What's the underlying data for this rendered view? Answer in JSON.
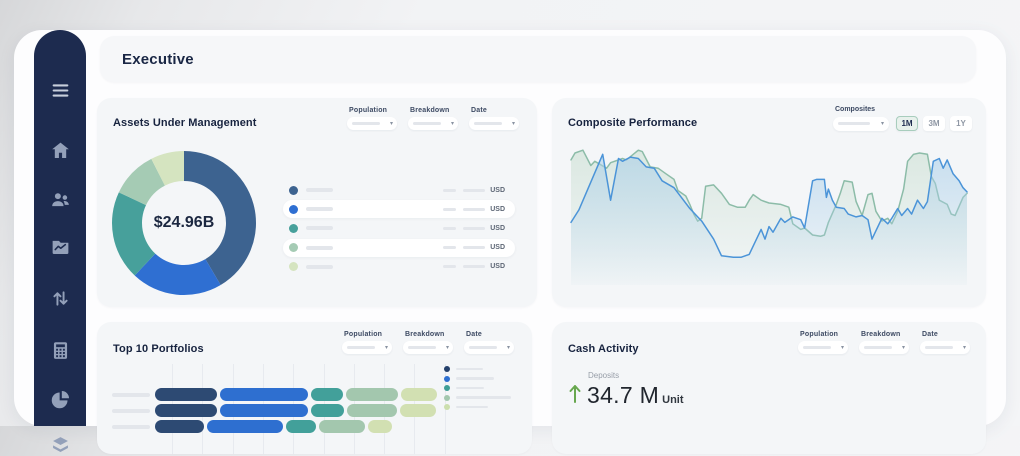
{
  "page": {
    "title": "Executive"
  },
  "sidebar": {
    "bg": "#1d2b4f",
    "icon_color": "#93a0b9",
    "icons": [
      "menu-icon",
      "home-icon",
      "users-icon",
      "portfolio-chart-icon",
      "transfers-icon",
      "calculator-icon",
      "pie-chart-icon",
      "layers-icon"
    ]
  },
  "aum": {
    "title": "Assets Under Management",
    "center_value": "$24.96B",
    "currency_label": "USD",
    "filter_labels": [
      "Population",
      "Breakdown",
      "Date"
    ],
    "legend_row_count": 5
  },
  "composite": {
    "title": "Composite Performance",
    "filter_label": "Composites",
    "range_buttons": [
      "1M",
      "3M",
      "1Y"
    ],
    "selected_range": "1M"
  },
  "top10": {
    "title": "Top 10 Portfolios",
    "filter_labels": [
      "Population",
      "Breakdown",
      "Date"
    ]
  },
  "cash": {
    "title": "Cash Activity",
    "metric_label": "Deposits",
    "value": "34.7 M",
    "unit_label": "Unit",
    "direction": "up",
    "arrow_color": "#67a74e"
  },
  "chart_data": [
    {
      "id": "aum-donut",
      "type": "pie",
      "title": "Assets Under Management",
      "center_label": "$24.96B",
      "values": [
        41.5,
        20.5,
        20,
        10.5,
        7.5
      ],
      "colors": [
        "#3d6390",
        "#2f6fd2",
        "#47a09b",
        "#a5cbb4",
        "#d5e4c0"
      ],
      "unit": "percent-of-total"
    },
    {
      "id": "composite-performance",
      "type": "area",
      "title": "Composite Performance",
      "x_range": [
        0,
        100
      ],
      "y_range": [
        0,
        100
      ],
      "grid": false,
      "series": [
        {
          "name": "composite-green",
          "color": "#8cbca8",
          "fill": "#cadfd2",
          "points": [
            [
              0,
              90
            ],
            [
              1,
              95
            ],
            [
              3,
              97
            ],
            [
              5,
              86
            ],
            [
              6,
              89
            ],
            [
              9,
              84
            ],
            [
              10,
              88
            ],
            [
              13,
              91
            ],
            [
              14,
              90
            ],
            [
              17,
              97
            ],
            [
              18,
              96
            ],
            [
              20,
              85
            ],
            [
              22,
              84
            ],
            [
              24,
              80
            ],
            [
              26,
              76
            ],
            [
              27,
              68
            ],
            [
              29,
              64
            ],
            [
              30,
              58
            ],
            [
              31,
              51
            ],
            [
              32,
              46
            ],
            [
              33,
              48
            ],
            [
              34,
              71
            ],
            [
              36,
              72
            ],
            [
              38,
              66
            ],
            [
              40,
              58
            ],
            [
              42,
              56
            ],
            [
              44,
              56
            ],
            [
              45,
              61
            ],
            [
              46,
              65
            ],
            [
              48,
              61
            ],
            [
              50,
              59
            ],
            [
              53,
              58
            ],
            [
              55,
              56
            ],
            [
              56,
              44
            ],
            [
              58,
              40
            ],
            [
              59,
              41
            ],
            [
              61,
              36
            ],
            [
              63,
              35
            ],
            [
              64,
              36
            ],
            [
              65,
              45
            ],
            [
              67,
              58
            ],
            [
              68,
              66
            ],
            [
              69,
              75
            ],
            [
              71,
              74
            ],
            [
              72,
              60
            ],
            [
              73.5,
              50
            ],
            [
              75,
              65
            ],
            [
              76,
              66
            ],
            [
              77,
              53
            ],
            [
              78.5,
              46
            ],
            [
              80,
              48
            ],
            [
              81,
              44
            ],
            [
              82.5,
              53
            ],
            [
              84,
              69
            ],
            [
              85,
              89
            ],
            [
              86.5,
              94
            ],
            [
              88,
              95
            ],
            [
              90,
              94
            ],
            [
              91,
              78
            ],
            [
              92,
              73
            ],
            [
              93,
              61
            ],
            [
              95,
              58
            ],
            [
              96,
              51
            ],
            [
              97,
              50
            ],
            [
              99,
              63
            ],
            [
              100,
              66
            ]
          ]
        },
        {
          "name": "composite-blue",
          "color": "#4b94d8",
          "fill": "#aacfe9",
          "points": [
            [
              0,
              45
            ],
            [
              2,
              54
            ],
            [
              8,
              94
            ],
            [
              10,
              61
            ],
            [
              12,
              91
            ],
            [
              13,
              89
            ],
            [
              15,
              92
            ],
            [
              17,
              91
            ],
            [
              19,
              85
            ],
            [
              21,
              84
            ],
            [
              23,
              75
            ],
            [
              26,
              70
            ],
            [
              30,
              55
            ],
            [
              33,
              46
            ],
            [
              36,
              33
            ],
            [
              38,
              21
            ],
            [
              41,
              20
            ],
            [
              43,
              20
            ],
            [
              45,
              22
            ],
            [
              48,
              40
            ],
            [
              49,
              33
            ],
            [
              50,
              42
            ],
            [
              51,
              38
            ],
            [
              53,
              48
            ],
            [
              54,
              45
            ],
            [
              56,
              49
            ],
            [
              58,
              47
            ],
            [
              59,
              41
            ],
            [
              60,
              58
            ],
            [
              61,
              75
            ],
            [
              62,
              76
            ],
            [
              64,
              76
            ],
            [
              64.5,
              63
            ],
            [
              65,
              69
            ],
            [
              66,
              61
            ],
            [
              67,
              56
            ],
            [
              69,
              55
            ],
            [
              70,
              51
            ],
            [
              72,
              49
            ],
            [
              73.5,
              50
            ],
            [
              75,
              47
            ],
            [
              76,
              33
            ],
            [
              77,
              39
            ],
            [
              78.5,
              48
            ],
            [
              80,
              44
            ],
            [
              81,
              48
            ],
            [
              82.5,
              55
            ],
            [
              83.5,
              50
            ],
            [
              85,
              55
            ],
            [
              86,
              51
            ],
            [
              87.5,
              61
            ],
            [
              89,
              55
            ],
            [
              90,
              60
            ],
            [
              91.5,
              89
            ],
            [
              93,
              91
            ],
            [
              94,
              84
            ],
            [
              95,
              90
            ],
            [
              96.5,
              80
            ],
            [
              98,
              75
            ],
            [
              99,
              70
            ],
            [
              100,
              67
            ]
          ]
        }
      ]
    },
    {
      "id": "top-10-portfolios",
      "type": "bar",
      "title": "Top 10 Portfolios",
      "orientation": "horizontal",
      "stacked": true,
      "colors": [
        "#2d4a73",
        "#2e6fd0",
        "#42a09a",
        "#a3c7ae",
        "#d2e0b2"
      ],
      "rows": [
        [
          62,
          88,
          32,
          52,
          36
        ],
        [
          62,
          88,
          33,
          50,
          36
        ],
        [
          49,
          76,
          30,
          46,
          24
        ]
      ],
      "legend_dot_colors": [
        "#24406b",
        "#2e6fd0",
        "#3f9e96",
        "#a3c7ae",
        "#ccdfae"
      ],
      "legend_line_widths": [
        27,
        38,
        28,
        55,
        32
      ]
    },
    {
      "id": "cash-activity",
      "type": "table",
      "title": "Cash Activity",
      "metrics": [
        {
          "label": "Deposits",
          "value": "34.7 M",
          "unit": "Unit",
          "direction": "up"
        }
      ]
    }
  ]
}
